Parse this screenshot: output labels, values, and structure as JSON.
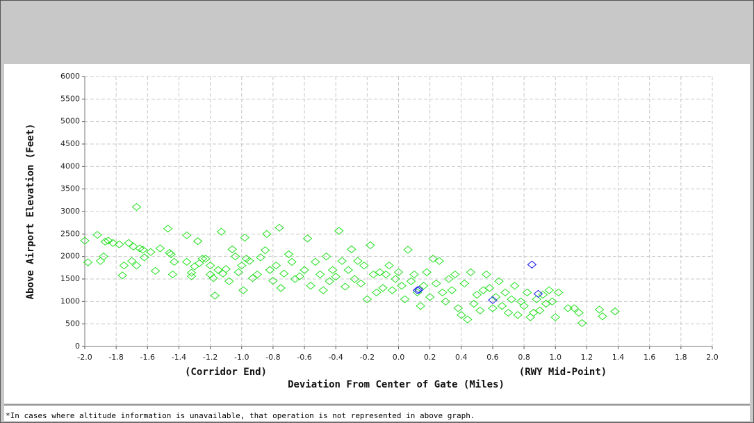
{
  "chart_data": {
    "type": "scatter",
    "x_label": "Deviation From Center of Gate (Miles)",
    "y_label": "Above Airport Elevation (Feet)",
    "annotations": [
      "(Corridor End)",
      "(RWY Mid-Point)"
    ],
    "footnote": "*In cases where altitude information is unavailable, that operation is not represented in above graph.",
    "xlim": [
      -2.0,
      2.0
    ],
    "ylim": [
      0,
      6000
    ],
    "xticks": [
      {
        "value": -2.0,
        "label": "-2.0"
      },
      -1.8,
      -1.6,
      -1.4,
      -1.2,
      {
        "value": -1.0,
        "label": "-1.0"
      },
      -0.8,
      -0.6,
      -0.4,
      -0.2,
      {
        "value": 0.0,
        "label": "0.0"
      },
      0.2,
      0.4,
      0.6,
      0.8,
      {
        "value": 1.0,
        "label": "1.0"
      },
      1.2,
      1.4,
      1.6,
      1.8,
      {
        "value": 2.0,
        "label": "2.0"
      }
    ],
    "yticks": [
      0,
      500,
      1000,
      1500,
      2000,
      2500,
      3000,
      3500,
      4000,
      4500,
      5000,
      5500,
      6000
    ],
    "grid": true,
    "series": [
      {
        "color": "#22e01e",
        "x": [
          -2.0,
          -1.98,
          -1.92,
          -1.9,
          -1.88,
          -1.87,
          -1.85,
          -1.82,
          -1.78,
          -1.76,
          -1.75,
          -1.72,
          -1.7,
          -1.69,
          -1.67,
          -1.67,
          -1.65,
          -1.63,
          -1.62,
          -1.58,
          -1.55,
          -1.52,
          -1.47,
          -1.46,
          -1.45,
          -1.44,
          -1.43,
          -1.35,
          -1.35,
          -1.32,
          -1.32,
          -1.3,
          -1.28,
          -1.27,
          -1.25,
          -1.23,
          -1.2,
          -1.2,
          -1.18,
          -1.17,
          -1.15,
          -1.13,
          -1.12,
          -1.1,
          -1.08,
          -1.06,
          -1.04,
          -1.02,
          -1.0,
          -0.99,
          -0.98,
          -0.97,
          -0.95,
          -0.93,
          -0.9,
          -0.88,
          -0.85,
          -0.84,
          -0.82,
          -0.8,
          -0.78,
          -0.76,
          -0.75,
          -0.73,
          -0.7,
          -0.68,
          -0.66,
          -0.63,
          -0.6,
          -0.58,
          -0.56,
          -0.53,
          -0.5,
          -0.48,
          -0.46,
          -0.44,
          -0.42,
          -0.4,
          -0.38,
          -0.36,
          -0.34,
          -0.32,
          -0.3,
          -0.28,
          -0.26,
          -0.24,
          -0.22,
          -0.2,
          -0.18,
          -0.16,
          -0.14,
          -0.12,
          -0.1,
          -0.08,
          -0.06,
          -0.04,
          -0.02,
          0.0,
          0.02,
          0.04,
          0.06,
          0.08,
          0.1,
          0.12,
          0.14,
          0.16,
          0.18,
          0.2,
          0.22,
          0.24,
          0.26,
          0.28,
          0.3,
          0.32,
          0.34,
          0.36,
          0.38,
          0.4,
          0.42,
          0.44,
          0.46,
          0.48,
          0.5,
          0.52,
          0.54,
          0.56,
          0.58,
          0.6,
          0.62,
          0.64,
          0.66,
          0.68,
          0.7,
          0.72,
          0.74,
          0.76,
          0.78,
          0.8,
          0.82,
          0.84,
          0.86,
          0.88,
          0.9,
          0.92,
          0.94,
          0.96,
          0.98,
          1.0,
          1.02,
          1.08,
          1.12,
          1.15,
          1.17,
          1.28,
          1.3,
          1.38
        ],
        "values": [
          2350,
          1870,
          2480,
          1900,
          2000,
          2330,
          2350,
          2300,
          2270,
          1580,
          1800,
          2300,
          1900,
          2220,
          3100,
          1800,
          2180,
          2150,
          1980,
          2100,
          1680,
          2180,
          2620,
          2080,
          2050,
          1600,
          1880,
          2470,
          1880,
          1560,
          1640,
          1780,
          2340,
          1850,
          1950,
          1950,
          1800,
          1600,
          1520,
          1130,
          1700,
          2550,
          1620,
          1720,
          1450,
          2160,
          2000,
          1650,
          1800,
          1250,
          2420,
          1950,
          1900,
          1520,
          1600,
          1980,
          2140,
          2500,
          1700,
          1460,
          1800,
          2640,
          1300,
          1620,
          2050,
          1880,
          1500,
          1560,
          1700,
          2400,
          1350,
          1880,
          1600,
          1250,
          2000,
          1450,
          1700,
          1550,
          2570,
          1900,
          1330,
          1700,
          2160,
          1500,
          1900,
          1400,
          1800,
          1050,
          2250,
          1600,
          1200,
          1650,
          1300,
          1600,
          1800,
          1250,
          1500,
          1650,
          1350,
          1050,
          2150,
          1450,
          1600,
          1200,
          900,
          1350,
          1650,
          1100,
          1950,
          1400,
          1900,
          1200,
          1000,
          1500,
          1250,
          1600,
          850,
          700,
          1400,
          600,
          1650,
          950,
          1150,
          800,
          1250,
          1600,
          1300,
          850,
          1100,
          1450,
          900,
          1200,
          750,
          1050,
          1350,
          700,
          1000,
          900,
          1200,
          650,
          750,
          1050,
          800,
          1150,
          950,
          1250,
          1000,
          650,
          1200,
          850,
          850,
          750,
          520,
          820,
          670,
          780
        ]
      },
      {
        "color": "#1a1aee",
        "x": [
          0.12,
          0.13,
          0.6,
          0.85,
          0.89
        ],
        "values": [
          1250,
          1260,
          1030,
          1820,
          1170
        ]
      }
    ]
  }
}
